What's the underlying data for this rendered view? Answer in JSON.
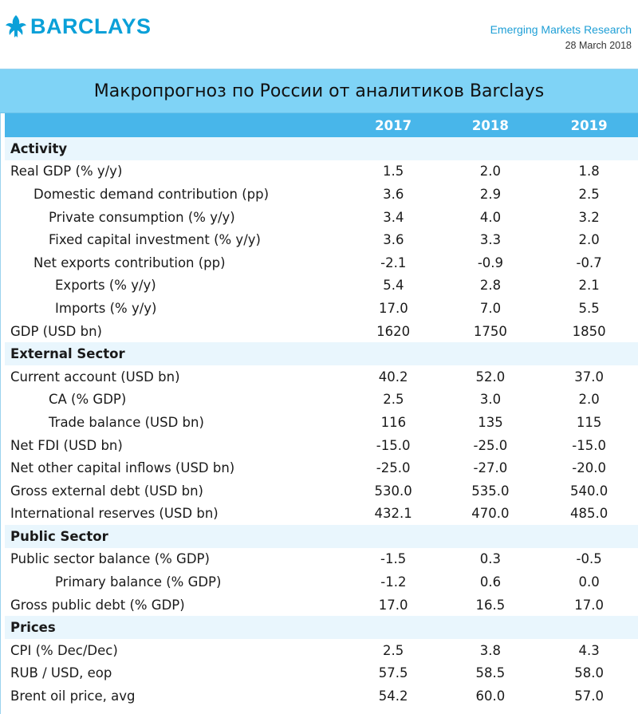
{
  "header": {
    "logo_text": "BARCLAYS",
    "report_name": "Emerging Markets Research",
    "report_date": "28 March 2018"
  },
  "title": "Макропрогноз по России от аналитиков Barclays",
  "colors": {
    "brand": "#0aa0d8",
    "title_bar": "#7fd3f6",
    "header_row": "#48b6ea",
    "section_row": "#e9f6fd"
  },
  "table": {
    "columns": [
      "2017",
      "2018",
      "2019"
    ],
    "rows": [
      {
        "type": "section",
        "label": "Activity",
        "values": [
          "",
          "",
          ""
        ]
      },
      {
        "type": "row",
        "indent": 0,
        "label": "Real GDP (% y/y)",
        "values": [
          "1.5",
          "2.0",
          "1.8"
        ]
      },
      {
        "type": "row",
        "indent": 1,
        "label": "Domestic demand contribution (pp)",
        "values": [
          "3.6",
          "2.9",
          "2.5"
        ]
      },
      {
        "type": "row",
        "indent": 2,
        "label": "Private consumption (% y/y)",
        "values": [
          "3.4",
          "4.0",
          "3.2"
        ]
      },
      {
        "type": "row",
        "indent": 2,
        "label": "Fixed capital investment (% y/y)",
        "values": [
          "3.6",
          "3.3",
          "2.0"
        ]
      },
      {
        "type": "row",
        "indent": 1,
        "label": "Net exports contribution (pp)",
        "values": [
          "-2.1",
          "-0.9",
          "-0.7"
        ]
      },
      {
        "type": "row",
        "indent": 3,
        "label": "Exports (% y/y)",
        "values": [
          "5.4",
          "2.8",
          "2.1"
        ]
      },
      {
        "type": "row",
        "indent": 3,
        "label": "Imports (% y/y)",
        "values": [
          "17.0",
          "7.0",
          "5.5"
        ]
      },
      {
        "type": "row",
        "indent": 0,
        "label": "GDP (USD bn)",
        "values": [
          "1620",
          "1750",
          "1850"
        ]
      },
      {
        "type": "section",
        "label": "External Sector",
        "values": [
          "",
          "",
          ""
        ]
      },
      {
        "type": "row",
        "indent": 0,
        "label": "Current account (USD bn)",
        "values": [
          "40.2",
          "52.0",
          "37.0"
        ]
      },
      {
        "type": "row",
        "indent": 2,
        "label": "CA (% GDP)",
        "values": [
          "2.5",
          "3.0",
          "2.0"
        ]
      },
      {
        "type": "row",
        "indent": 2,
        "label": "Trade balance (USD bn)",
        "values": [
          "116",
          "135",
          "115"
        ]
      },
      {
        "type": "row",
        "indent": 0,
        "label": "Net FDI (USD bn)",
        "values": [
          "-15.0",
          "-25.0",
          "-15.0"
        ]
      },
      {
        "type": "row",
        "indent": 0,
        "label": "Net other capital inflows (USD bn)",
        "values": [
          "-25.0",
          "-27.0",
          "-20.0"
        ]
      },
      {
        "type": "row",
        "indent": 0,
        "label": "Gross external debt (USD bn)",
        "values": [
          "530.0",
          "535.0",
          "540.0"
        ]
      },
      {
        "type": "row",
        "indent": 0,
        "label": "International reserves (USD bn)",
        "values": [
          "432.1",
          "470.0",
          "485.0"
        ]
      },
      {
        "type": "section",
        "label": "Public Sector",
        "values": [
          "",
          "",
          ""
        ]
      },
      {
        "type": "row",
        "indent": 0,
        "label": "Public sector balance (% GDP)",
        "values": [
          "-1.5",
          "0.3",
          "-0.5"
        ]
      },
      {
        "type": "row",
        "indent": 3,
        "label": "Primary balance (% GDP)",
        "values": [
          "-1.2",
          "0.6",
          "0.0"
        ]
      },
      {
        "type": "row",
        "indent": 0,
        "label": "Gross public debt (% GDP)",
        "values": [
          "17.0",
          "16.5",
          "17.0"
        ]
      },
      {
        "type": "section",
        "label": "Prices",
        "values": [
          "",
          "",
          ""
        ]
      },
      {
        "type": "row",
        "indent": 0,
        "label": "CPI (% Dec/Dec)",
        "values": [
          "2.5",
          "3.8",
          "4.3"
        ]
      },
      {
        "type": "row",
        "indent": 0,
        "label": "RUB / USD, eop",
        "values": [
          "57.5",
          "58.5",
          "58.0"
        ]
      },
      {
        "type": "row",
        "indent": 0,
        "label": "Brent oil price, avg",
        "values": [
          "54.2",
          "60.0",
          "57.0"
        ]
      }
    ]
  }
}
